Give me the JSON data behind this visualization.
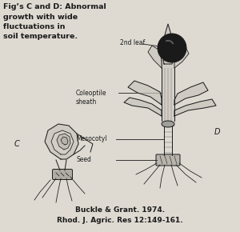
{
  "title_lines": [
    "Fig’s C and D: Abnormal",
    "growth with wide",
    "fluctuations in",
    "soil temperature."
  ],
  "label_2nd_leaf": "2nd leaf",
  "label_coleoptile": "Coleoptile\nsheath",
  "label_mesocotyl": "Mesocotyl",
  "label_seed": "Seed",
  "label_C": "C",
  "label_D": "D",
  "citation_line1": "Buckle & Grant. 1974.",
  "citation_line2": "Rhod. J. Agric. Res 12:149-161.",
  "bg_color": "#dedad2",
  "line_color": "#1a1a1a",
  "fig_width": 3.0,
  "fig_height": 2.9
}
